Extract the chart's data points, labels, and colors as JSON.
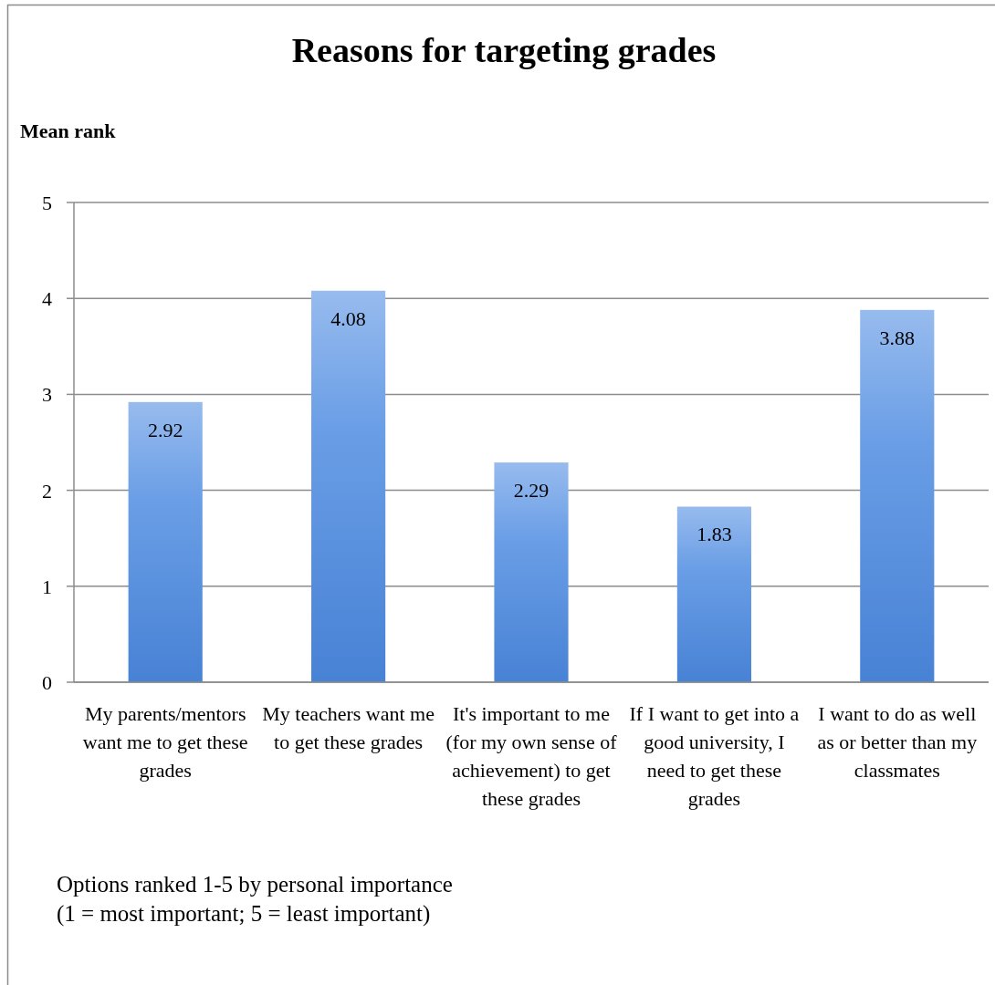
{
  "chart_data": {
    "type": "bar",
    "title": "Reasons for targeting grades",
    "ylabel": "Mean rank",
    "categories": [
      "My parents/mentors want me to get these grades",
      "My teachers want me to get these grades",
      "It's important to me (for my own sense of achievement) to get these grades",
      "If I want to get into a good university, I need to get these grades",
      "I want to do as well as or better than my classmates"
    ],
    "values": [
      2.92,
      4.08,
      2.29,
      1.83,
      3.88
    ],
    "color": "#6a9ee6",
    "ylim": [
      0,
      5
    ],
    "yticks": [
      0,
      1,
      2,
      3,
      4,
      5
    ],
    "grid": "y",
    "data_labels": true,
    "annotations": [
      "Options ranked 1-5 by personal importance",
      "(1 = most important; 5 = least important)"
    ]
  }
}
